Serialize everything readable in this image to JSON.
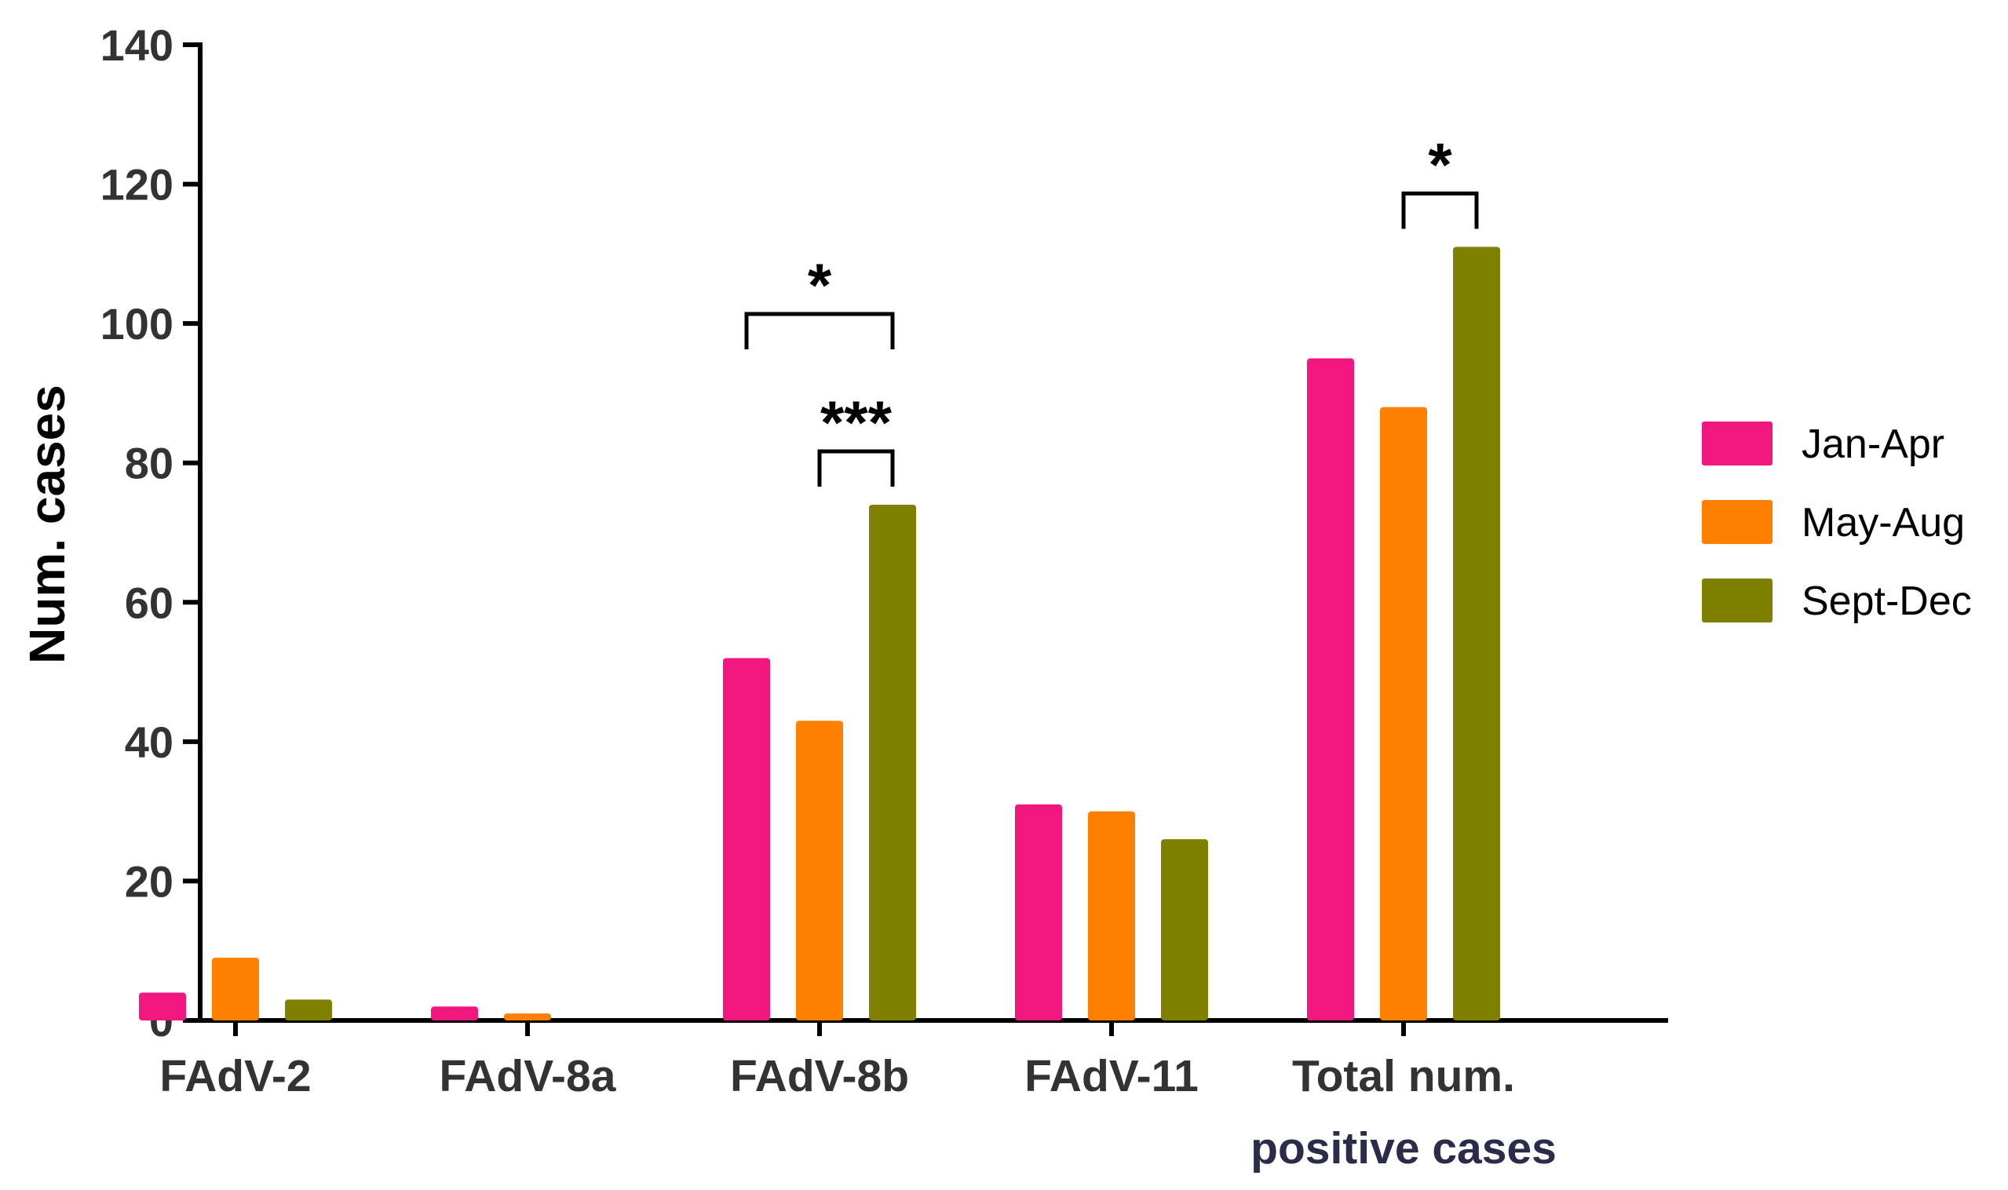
{
  "chart_data": {
    "type": "bar",
    "title": "",
    "xlabel": "",
    "ylabel": "Num. cases",
    "ylim": [
      0,
      140
    ],
    "yticks": [
      0,
      20,
      40,
      60,
      80,
      100,
      120,
      140
    ],
    "categories": [
      [
        "FAdV-2"
      ],
      [
        "FAdV-8a"
      ],
      [
        "FAdV-8b"
      ],
      [
        "FAdV-11"
      ],
      [
        "Total num.",
        "positive cases"
      ]
    ],
    "series": [
      {
        "name": "Jan-Apr",
        "color": "#f2167f",
        "values": [
          4,
          2,
          52,
          31,
          95
        ]
      },
      {
        "name": "May-Aug",
        "color": "#ff7f00",
        "values": [
          9,
          1,
          43,
          30,
          88
        ]
      },
      {
        "name": "Sept-Dec",
        "color": "#7f7f00",
        "values": [
          3,
          0,
          74,
          26,
          111
        ]
      }
    ],
    "legend_position": "right",
    "grid": false,
    "significance": [
      {
        "category": 2,
        "from_series": 0,
        "to_series": 2,
        "label": "*"
      },
      {
        "category": 2,
        "from_series": 1,
        "to_series": 2,
        "label": "***"
      },
      {
        "category": 4,
        "from_series": 1,
        "to_series": 2,
        "label": "*"
      }
    ]
  }
}
